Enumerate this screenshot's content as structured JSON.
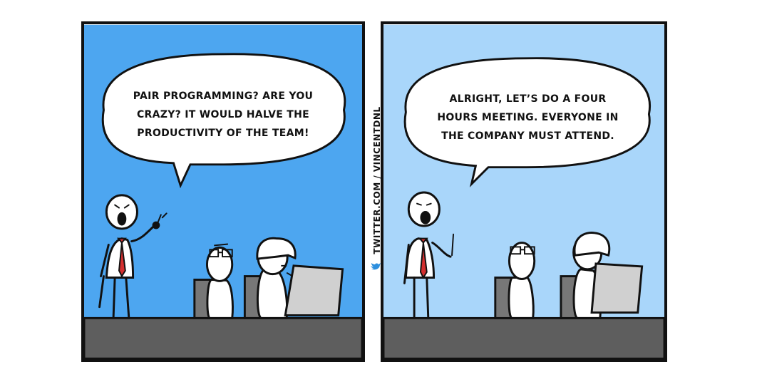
{
  "comic": {
    "panel_1": {
      "speech": "PAIR PROGRAMMING? ARE YOU\nCRAZY? IT WOULD HALVE THE\nPRODUCTIVITY OF THE TEAM!",
      "background": "#4da6f0"
    },
    "panel_2": {
      "speech": "ALRIGHT, LET’S DO A FOUR\nHOURS MEETING. EVERYONE IN\nTHE COMPANY MUST ATTEND.",
      "background": "#a9d6fa"
    },
    "credit": "TWITTER.COM / VINCENTDNL",
    "icons": [
      "bird-icon"
    ]
  }
}
